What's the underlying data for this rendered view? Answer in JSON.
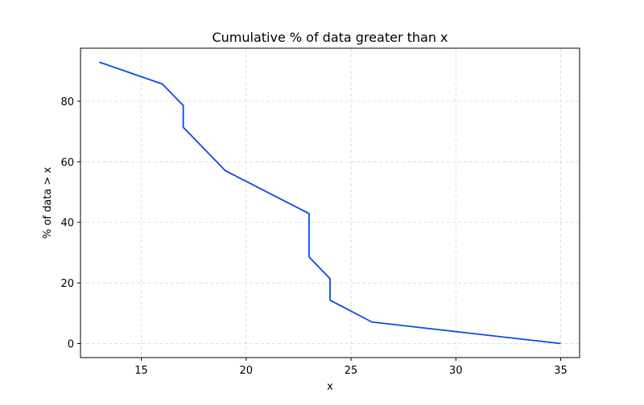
{
  "chart_data": {
    "type": "line",
    "title": "Cumulative % of data greater than x",
    "xlabel": "x",
    "ylabel": "% of data > x",
    "xlim": [
      12.1,
      35.9
    ],
    "ylim": [
      -4.64,
      97.5
    ],
    "xticks": [
      15,
      20,
      25,
      30,
      35
    ],
    "yticks": [
      0,
      20,
      40,
      60,
      80
    ],
    "grid": true,
    "line_color": "#0b46e8",
    "grid_color": "#d6d6d6",
    "series": [
      {
        "x": [
          13,
          16,
          17,
          17,
          19,
          23,
          23,
          24,
          24,
          26,
          35
        ],
        "y": [
          92.9,
          85.7,
          78.6,
          71.4,
          57.1,
          42.9,
          28.6,
          21.4,
          14.3,
          7.1,
          0.0
        ]
      }
    ]
  }
}
